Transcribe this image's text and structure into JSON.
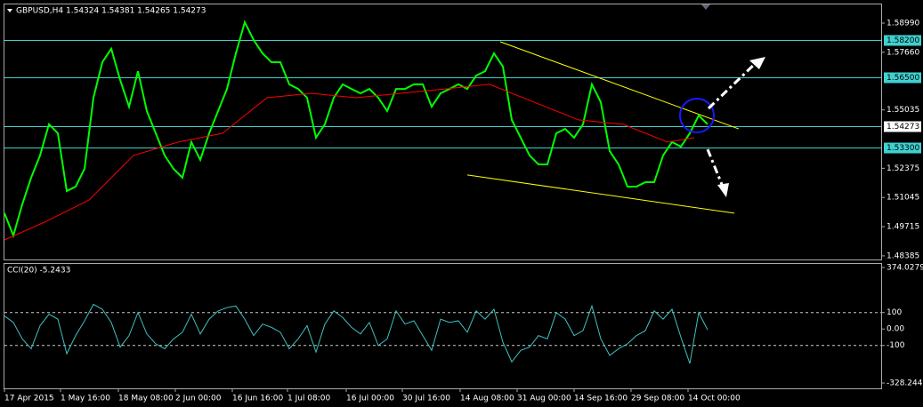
{
  "chart_data": [
    {
      "type": "line",
      "title": "GBPUSD,H4  1.54324 1.54381 1.54265 1.54273",
      "xlim": [
        0,
        98.5
      ],
      "ylim": [
        1.4822,
        1.5984
      ],
      "yticks": [
        {
          "value": 1.5899,
          "label": "1.58990"
        },
        {
          "value": 1.5766,
          "label": "1.57660"
        },
        {
          "value": 1.55035,
          "label": "1.55035"
        },
        {
          "value": 1.52375,
          "label": "1.52375"
        },
        {
          "value": 1.51045,
          "label": "1.51045"
        },
        {
          "value": 1.49715,
          "label": "1.49715"
        },
        {
          "value": 1.48385,
          "label": "1.48385"
        }
      ],
      "levels": [
        {
          "value": 1.582,
          "label": "1.58200"
        },
        {
          "value": 1.565,
          "label": "1.56500"
        },
        {
          "value": 1.533,
          "label": "1.53300"
        }
      ],
      "current": {
        "value": 1.54273,
        "label": "1.54273"
      },
      "series": [
        {
          "color": "#00ff00",
          "x": [
            0,
            1,
            2,
            3,
            4,
            5,
            6,
            7,
            8,
            9,
            10,
            11,
            12,
            13,
            14,
            15,
            16,
            17,
            18,
            19,
            20,
            21,
            22,
            23,
            24,
            25,
            26,
            27,
            28,
            29,
            30,
            31,
            32,
            33,
            34,
            35,
            36,
            37,
            38,
            39,
            40,
            41,
            42,
            43,
            44,
            45,
            46,
            47,
            48,
            49,
            50,
            51,
            52,
            53,
            54,
            55,
            56,
            57,
            58,
            59,
            60,
            61,
            62,
            63,
            64,
            65,
            66,
            67,
            68,
            69,
            70,
            71,
            72,
            73,
            74,
            75,
            76,
            77,
            78,
            79
          ],
          "values": [
            1.5033,
            1.4931,
            1.5073,
            1.5195,
            1.5296,
            1.5438,
            1.5397,
            1.5134,
            1.5154,
            1.5235,
            1.5559,
            1.5721,
            1.5782,
            1.564,
            1.5518,
            1.568,
            1.5498,
            1.5397,
            1.5296,
            1.5235,
            1.5195,
            1.5357,
            1.5276,
            1.5397,
            1.5498,
            1.5599,
            1.5761,
            1.5903,
            1.5822,
            1.5761,
            1.5721,
            1.5721,
            1.562,
            1.5599,
            1.5559,
            1.5377,
            1.5438,
            1.5559,
            1.562,
            1.5599,
            1.5579,
            1.5599,
            1.5559,
            1.5498,
            1.5599,
            1.5599,
            1.562,
            1.562,
            1.5518,
            1.5579,
            1.5599,
            1.562,
            1.5599,
            1.566,
            1.568,
            1.5761,
            1.5701,
            1.5458,
            1.5377,
            1.5296,
            1.5255,
            1.5255,
            1.5397,
            1.5417,
            1.5377,
            1.5438,
            1.562,
            1.5539,
            1.5316,
            1.5255,
            1.5154,
            1.5154,
            1.5174,
            1.5174,
            1.5296,
            1.5357,
            1.5336,
            1.5397,
            1.5478,
            1.5438
          ]
        },
        {
          "color": "#ff0000",
          "x": [
            0,
            4.5,
            9.5,
            14.5,
            19.5,
            24.5,
            29.5,
            34.5,
            39.5,
            44.5,
            49.5,
            54.5,
            59.5,
            64.5,
            69.5,
            74.5,
            77.5
          ],
          "values": [
            1.4911,
            1.4992,
            1.5093,
            1.5296,
            1.5357,
            1.5397,
            1.5559,
            1.5579,
            1.5559,
            1.5579,
            1.5599,
            1.562,
            1.5539,
            1.5458,
            1.5438,
            1.5357,
            1.5377
          ]
        }
      ],
      "trendlines": [
        {
          "color": "#ffff00",
          "x": [
            55.7,
            82.5
          ],
          "y": [
            1.5814,
            1.5417
          ]
        },
        {
          "color": "#ffff00",
          "x": [
            52,
            82
          ],
          "y": [
            1.5207,
            1.5033
          ]
        }
      ]
    },
    {
      "type": "line",
      "title": "CCI(20) -5.2433",
      "xlim": [
        0,
        98.5
      ],
      "ylim": [
        -328.2446,
        374.0279
      ],
      "yticks": [
        374.0279,
        100,
        {
          "value": 0,
          "label": "0.00"
        },
        -100,
        -328.2446
      ],
      "levels": [
        100,
        -100
      ],
      "xticks": [
        {
          "value": 0,
          "label": "17 Apr 2015"
        },
        {
          "value": 6.3,
          "label": "1 May 16:00"
        },
        {
          "value": 12.8,
          "label": "18 May 08:00"
        },
        {
          "value": 19.2,
          "label": "2 Jun 00:00"
        },
        {
          "value": 25.6,
          "label": "16 Jun 16:00"
        },
        {
          "value": 31.8,
          "label": "1 Jul 08:00"
        },
        {
          "value": 38.4,
          "label": "16 Jul 00:00"
        },
        {
          "value": 44.7,
          "label": "30 Jul 16:00"
        },
        {
          "value": 51.2,
          "label": "14 Aug 08:00"
        },
        {
          "value": 57.6,
          "label": "31 Aug 00:00"
        },
        {
          "value": 64,
          "label": "14 Sep 16:00"
        },
        {
          "value": 70.4,
          "label": "29 Sep 08:00"
        },
        {
          "value": 76.8,
          "label": "14 Oct 00:00"
        }
      ],
      "series": [
        {
          "color": "#40c0c0",
          "x": [
            0,
            1,
            2,
            3,
            4,
            5,
            6,
            7,
            8,
            9,
            10,
            11,
            12,
            13,
            14,
            15,
            16,
            17,
            18,
            19,
            20,
            21,
            22,
            23,
            24,
            25,
            26,
            27,
            28,
            29,
            30,
            31,
            32,
            33,
            34,
            35,
            36,
            37,
            38,
            39,
            40,
            41,
            42,
            43,
            44,
            45,
            46,
            47,
            48,
            49,
            50,
            51,
            52,
            53,
            54,
            55,
            56,
            57,
            58,
            59,
            60,
            61,
            62,
            63,
            64,
            65,
            66,
            67,
            68,
            69,
            70,
            71,
            72,
            73,
            74,
            75,
            76,
            77,
            78,
            79
          ],
          "values": [
            80,
            40,
            -60,
            -120,
            20,
            90,
            60,
            -150,
            -40,
            50,
            150,
            120,
            40,
            -110,
            -40,
            100,
            -30,
            -90,
            -120,
            -60,
            -20,
            90,
            -30,
            60,
            110,
            130,
            140,
            60,
            -40,
            30,
            10,
            -20,
            -120,
            -60,
            20,
            -140,
            30,
            110,
            70,
            10,
            -30,
            40,
            -100,
            -60,
            110,
            30,
            50,
            -40,
            -130,
            60,
            40,
            50,
            -20,
            110,
            60,
            120,
            -80,
            -200,
            -130,
            -110,
            -40,
            -60,
            100,
            60,
            -40,
            -10,
            140,
            -60,
            -160,
            -120,
            -90,
            -40,
            -10,
            110,
            60,
            120,
            -50,
            -210,
            100,
            -5
          ]
        }
      ]
    }
  ]
}
